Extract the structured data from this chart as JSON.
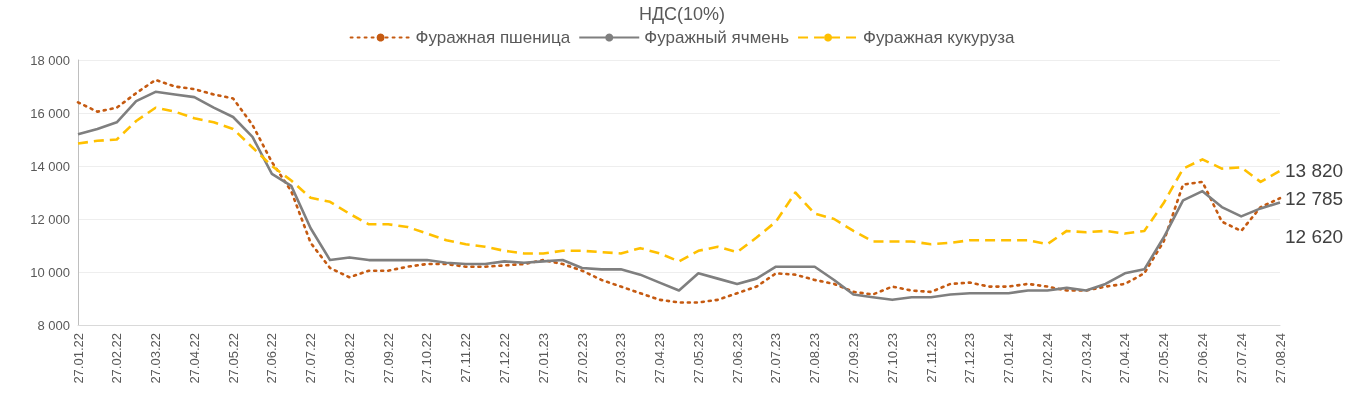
{
  "chart_data": {
    "type": "line",
    "title": "НДС(10%)",
    "categories": [
      "27.01.22",
      null,
      "27.02.22",
      null,
      "27.03.22",
      null,
      "27.04.22",
      null,
      "27.05.22",
      null,
      "27.06.22",
      null,
      "27.07.22",
      null,
      "27.08.22",
      null,
      "27.09.22",
      null,
      "27.10.22",
      null,
      "27.11.22",
      null,
      "27.12.22",
      null,
      "27.01.23",
      null,
      "27.02.23",
      null,
      "27.03.23",
      null,
      "27.04.23",
      null,
      "27.05.23",
      null,
      "27.06.23",
      null,
      "27.07.23",
      null,
      "27.08.23",
      null,
      "27.09.23",
      null,
      "27.10.23",
      null,
      "27.11.23",
      null,
      "27.12.23",
      null,
      "27.01.24",
      null,
      "27.02.24",
      null,
      "27.03.24",
      null,
      "27.04.24",
      null,
      "27.05.24",
      null,
      "27.06.24",
      null,
      "27.07.24",
      null,
      "27.08.24"
    ],
    "series": [
      {
        "name": "Фуражная пшеница",
        "color": "#c55a11",
        "line_style": "dotted",
        "values": [
          16400,
          16050,
          16200,
          16750,
          17250,
          17000,
          16900,
          16700,
          16550,
          15550,
          14150,
          13050,
          11100,
          10150,
          9800,
          10050,
          10050,
          10200,
          10300,
          10300,
          10200,
          10200,
          10250,
          10300,
          10450,
          10300,
          10050,
          9700,
          9450,
          9200,
          8950,
          8850,
          8850,
          8950,
          9200,
          9450,
          9950,
          9900,
          9700,
          9550,
          9250,
          9150,
          9450,
          9300,
          9250,
          9550,
          9600,
          9450,
          9450,
          9550,
          9450,
          9300,
          9300,
          9450,
          9550,
          9950,
          11150,
          13300,
          13400,
          11900,
          11550,
          12450,
          12785
        ],
        "value_labels": [
          null,
          null,
          null,
          null,
          null,
          null,
          null,
          null,
          null,
          null,
          null,
          null,
          null,
          null,
          null,
          null,
          null,
          null,
          null,
          null,
          null,
          null,
          null,
          null,
          null,
          null,
          null,
          null,
          null,
          null,
          null,
          null,
          null,
          null,
          null,
          null,
          null,
          null,
          null,
          null,
          null,
          null,
          null,
          null,
          null,
          null,
          null,
          null,
          null,
          null,
          null,
          null,
          null,
          null,
          null,
          null,
          null,
          null,
          null,
          null,
          null,
          null,
          "12 785"
        ]
      },
      {
        "name": "Фуражный ячмень",
        "color": "#7f7f7f",
        "line_style": "solid",
        "values": [
          15200,
          15400,
          15650,
          16450,
          16800,
          16700,
          16600,
          16200,
          15850,
          15100,
          13700,
          13250,
          11650,
          10450,
          10550,
          10450,
          10450,
          10450,
          10450,
          10350,
          10300,
          10300,
          10400,
          10350,
          10400,
          10450,
          10150,
          10100,
          10100,
          9900,
          9600,
          9300,
          9950,
          9750,
          9550,
          9750,
          10200,
          10200,
          10200,
          9700,
          9150,
          9050,
          8950,
          9050,
          9050,
          9150,
          9200,
          9200,
          9200,
          9300,
          9300,
          9400,
          9300,
          9550,
          9950,
          10100,
          11300,
          12700,
          13050,
          12450,
          12100,
          12400,
          12620
        ],
        "value_labels": [
          null,
          null,
          null,
          null,
          null,
          null,
          null,
          null,
          null,
          null,
          null,
          null,
          null,
          null,
          null,
          null,
          null,
          null,
          null,
          null,
          null,
          null,
          null,
          null,
          null,
          null,
          null,
          null,
          null,
          null,
          null,
          null,
          null,
          null,
          null,
          null,
          null,
          null,
          null,
          null,
          null,
          null,
          null,
          null,
          null,
          null,
          null,
          null,
          null,
          null,
          null,
          null,
          null,
          null,
          null,
          null,
          null,
          null,
          null,
          null,
          null,
          null,
          "12 620"
        ]
      },
      {
        "name": "Фуражная кукуруза",
        "color": "#ffc000",
        "line_style": "dashed",
        "values": [
          14850,
          14950,
          15000,
          15700,
          16200,
          16050,
          15800,
          15650,
          15400,
          14700,
          14000,
          13450,
          12800,
          12650,
          12200,
          11800,
          11800,
          11700,
          11450,
          11200,
          11050,
          10950,
          10800,
          10700,
          10700,
          10800,
          10800,
          10750,
          10700,
          10900,
          10700,
          10400,
          10800,
          10950,
          10750,
          11300,
          11900,
          13000,
          12200,
          12000,
          11550,
          11150,
          11150,
          11150,
          11050,
          11100,
          11200,
          11200,
          11200,
          11200,
          11050,
          11550,
          11500,
          11550,
          11450,
          11550,
          12600,
          13900,
          14250,
          13900,
          13950,
          13400,
          13820
        ],
        "value_labels": [
          null,
          null,
          null,
          null,
          null,
          null,
          null,
          null,
          null,
          null,
          null,
          null,
          null,
          null,
          null,
          null,
          null,
          null,
          null,
          null,
          null,
          null,
          null,
          null,
          null,
          null,
          null,
          null,
          null,
          null,
          null,
          null,
          null,
          null,
          null,
          null,
          null,
          null,
          null,
          null,
          null,
          null,
          null,
          null,
          null,
          null,
          null,
          null,
          null,
          null,
          null,
          null,
          null,
          null,
          null,
          null,
          null,
          null,
          null,
          null,
          null,
          null,
          "13 820"
        ]
      }
    ],
    "ylim": [
      8000,
      18000
    ],
    "yticks": [
      {
        "value": 8000,
        "label": "8 000"
      },
      {
        "value": 10000,
        "label": "10 000"
      },
      {
        "value": 12000,
        "label": "12 000"
      },
      {
        "value": 14000,
        "label": "14 000"
      },
      {
        "value": 16000,
        "label": "16 000"
      },
      {
        "value": 18000,
        "label": "18 000"
      }
    ],
    "grid": "y",
    "legend": "top",
    "marker": "none"
  }
}
